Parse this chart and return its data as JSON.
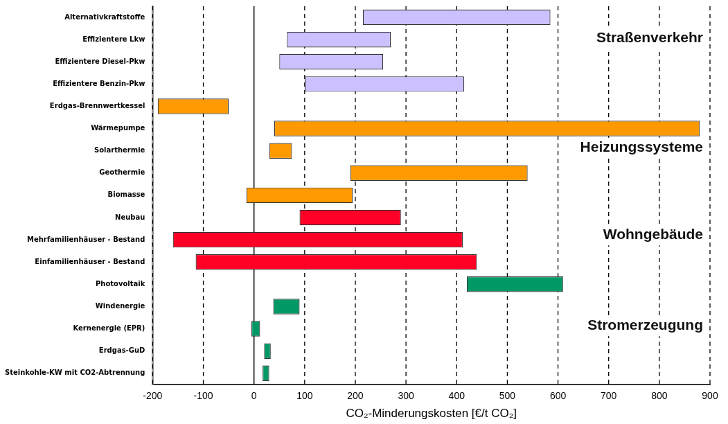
{
  "chart_data": {
    "type": "bar",
    "orientation": "horizontal",
    "categories": [
      "Alternativkraftstoffe",
      "Effizientere Lkw",
      "Effizientere Diesel-Pkw",
      "Effizientere Benzin-Pkw",
      "Erdgas-Brennwertkessel",
      "Wärmepumpe",
      "Solarthermie",
      "Geothermie",
      "Biomasse",
      "Neubau",
      "Mehrfamilienhäuser - Bestand",
      "Einfamilienhäuser - Bestand",
      "Photovoltaik",
      "Windenergie",
      "Kernenergie (EPR)",
      "Erdgas-GuD",
      "Steinkohle-KW mit CO2-Abtrennung"
    ],
    "base": [
      215,
      65,
      50,
      100,
      -190,
      40,
      30,
      190,
      -15,
      90,
      -160,
      -115,
      420,
      38,
      -5,
      20,
      17
    ],
    "values": [
      370,
      205,
      205,
      315,
      140,
      840,
      45,
      350,
      210,
      200,
      572,
      555,
      190,
      52,
      17,
      13,
      13
    ],
    "colors": [
      "#ccc0ff",
      "#ccc0ff",
      "#ccc0ff",
      "#ccc0ff",
      "#ff9900",
      "#ff9900",
      "#ff9900",
      "#ff9900",
      "#ff9900",
      "#ff0026",
      "#ff0026",
      "#ff0026",
      "#009966",
      "#009966",
      "#009966",
      "#009966",
      "#009966"
    ],
    "xlim": [
      -200,
      900
    ],
    "xticks": [
      -200,
      -100,
      0,
      100,
      200,
      300,
      400,
      500,
      600,
      700,
      800,
      900
    ],
    "xlabel": "CO₂-Minderungskosten [€/t CO₂]",
    "grid": "x",
    "line_style": "dashed",
    "legend": false,
    "annotations": [
      "Straßenverkehr",
      "Heizungssysteme",
      "Wohngebäude",
      "Stromerzeugung"
    ]
  }
}
